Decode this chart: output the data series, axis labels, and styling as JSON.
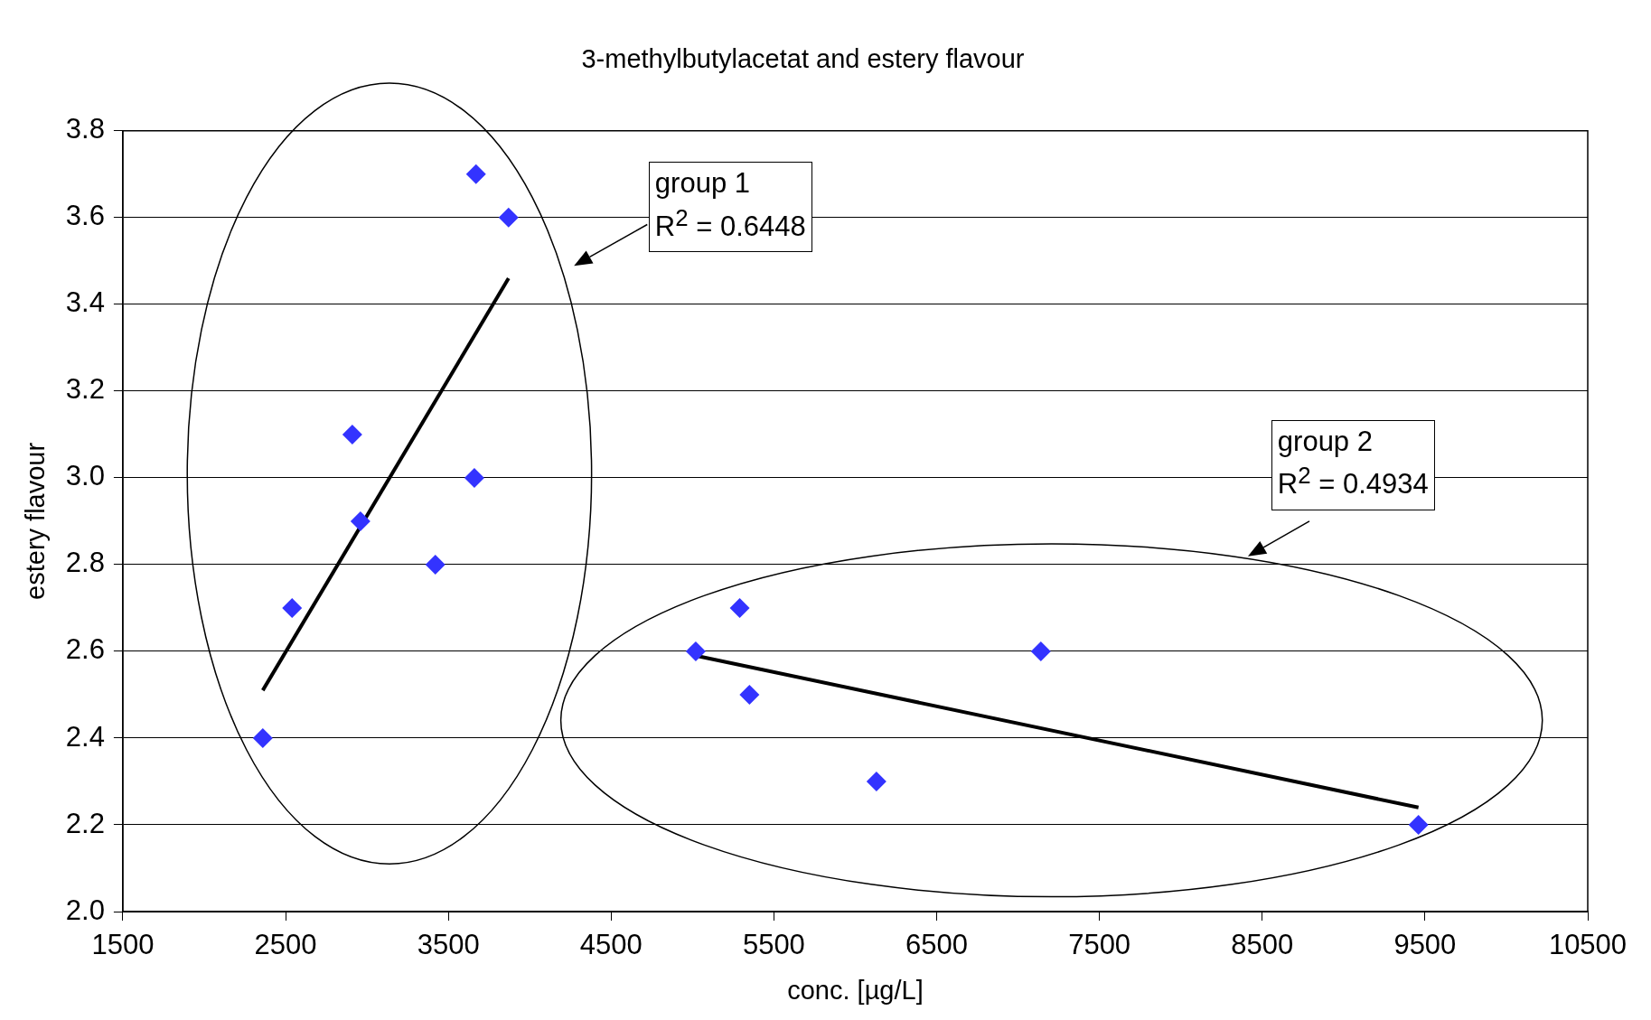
{
  "chart_data": {
    "type": "scatter",
    "title": "3-methylbutylacetat and estery flavour",
    "xlabel": "conc. [µg/L]",
    "ylabel": "estery flavour",
    "xlim": [
      1500,
      10500
    ],
    "xticks": [
      1500,
      2500,
      3500,
      4500,
      5500,
      6500,
      7500,
      8500,
      9500,
      10500
    ],
    "ylim": [
      2.0,
      3.8
    ],
    "yticks": [
      {
        "value": 2,
        "label": "2.0"
      },
      2.2,
      2.4,
      2.6,
      2.8,
      {
        "value": 3,
        "label": "3.0"
      },
      3.2,
      3.4,
      3.6,
      3.8
    ],
    "grid": "y",
    "legend": false,
    "marker": "diamond",
    "series": [
      {
        "type": "scatter",
        "color": "#3333ff",
        "x": [
          2360,
          2540,
          2910,
          2960,
          3420,
          3660,
          3670,
          3870,
          5020,
          5290,
          5350,
          6130,
          7140,
          9460
        ],
        "values": [
          2.4,
          2.7,
          3.1,
          2.9,
          2.8,
          3.0,
          3.7,
          3.6,
          2.6,
          2.7,
          2.5,
          2.3,
          2.6,
          2.2
        ]
      },
      {
        "type": "line",
        "color": "#000000",
        "marker": "none",
        "line_style": "solid",
        "x": [
          2360,
          3870
        ],
        "values": [
          2.51,
          3.46
        ]
      },
      {
        "type": "line",
        "color": "#000000",
        "marker": "none",
        "line_style": "solid",
        "x": [
          5020,
          9460
        ],
        "values": [
          2.59,
          2.24
        ]
      }
    ],
    "annotations": [
      "group 1\nR$^{2}$ = 0.6448",
      "group 2\nR$^{2}$ = 0.4934"
    ]
  }
}
